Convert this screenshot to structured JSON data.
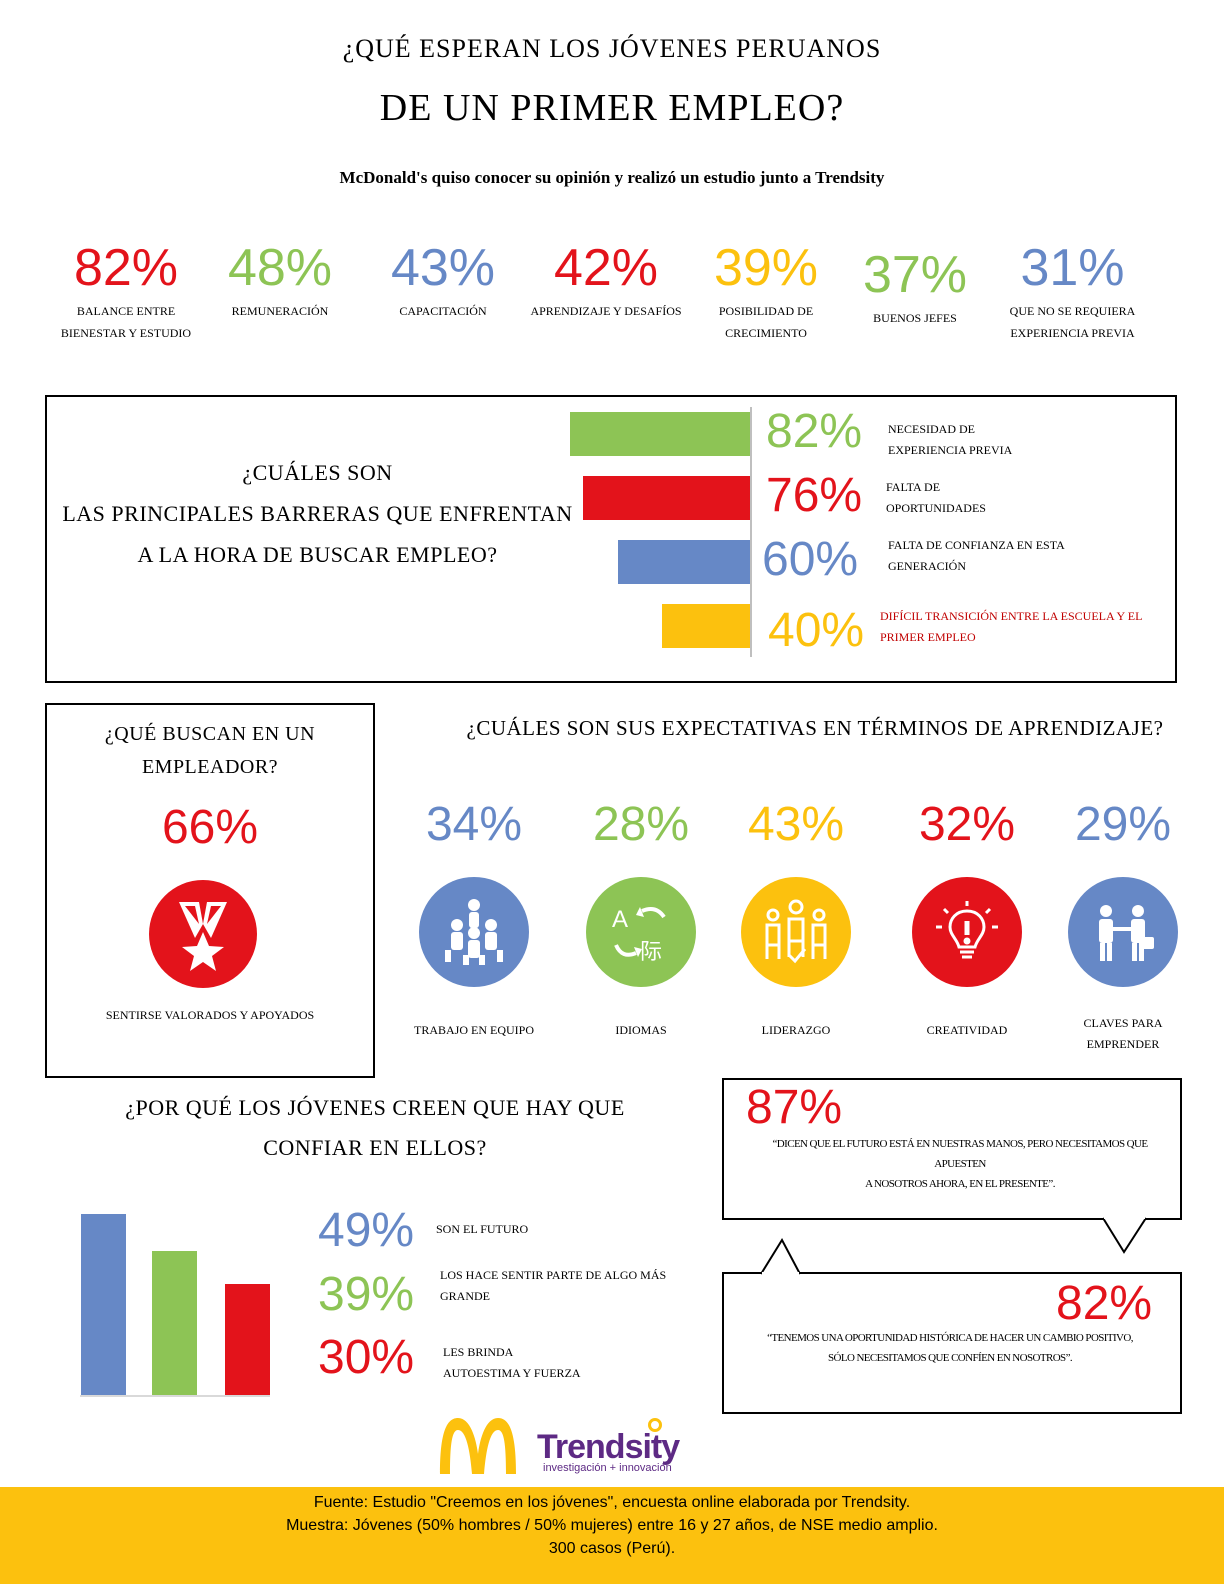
{
  "header": {
    "title_line1": "¿QUÉ ESPERAN LOS JÓVENES PERUANOS",
    "title_line2": "DE UN PRIMER EMPLEO?",
    "subtitle": "McDonald's quiso conocer su opinión y realizó un estudio junto a Trendsity"
  },
  "colors": {
    "red": "#e3131b",
    "green": "#8dc455",
    "blue": "#6688c6",
    "yellow": "#fcc10e",
    "dark_red": "#c00000"
  },
  "top_stats": [
    {
      "value": "82%",
      "label_l1": "balance entre",
      "label_l2": "bienestar y estudio",
      "color": "#e3131b"
    },
    {
      "value": "48%",
      "label_l1": "remuneración",
      "label_l2": "",
      "color": "#8dc455"
    },
    {
      "value": "43%",
      "label_l1": "capacitación",
      "label_l2": "",
      "color": "#6688c6"
    },
    {
      "value": "42%",
      "label_l1": "aprendizaje y desafíos",
      "label_l2": "",
      "color": "#e3131b"
    },
    {
      "value": "39%",
      "label_l1": "posibilidad de",
      "label_l2": "crecimiento",
      "color": "#fcc10e"
    },
    {
      "value": "37%",
      "label_l1": "buenos jefes",
      "label_l2": "",
      "color": "#8dc455"
    },
    {
      "value": "31%",
      "label_l1": "que no se requiera",
      "label_l2": "experiencia previa",
      "color": "#6688c6"
    }
  ],
  "barriers": {
    "question_l1": "¿CUÁLES SON",
    "question_l2": "LAS PRINCIPALES BARRERAS QUE ENFRENTAN",
    "question_l3": "A LA HORA DE BUSCAR EMPLEO?",
    "items": [
      {
        "value": "82%",
        "label_l1": "necesidad de",
        "label_l2": "experiencia previa",
        "color": "#8dc455",
        "fraction": 0.82
      },
      {
        "value": "76%",
        "label_l1": "falta de",
        "label_l2": "oportunidades",
        "color": "#e3131b",
        "fraction": 0.76
      },
      {
        "value": "60%",
        "label_l1": "falta de confianza en esta",
        "label_l2": "generación",
        "color": "#6688c6",
        "fraction": 0.6
      },
      {
        "value": "40%",
        "label_l1": "difícil transición entre la escuela y el",
        "label_l2": "primer empleo",
        "color": "#fcc10e",
        "fraction": 0.4
      }
    ]
  },
  "employer": {
    "question_l1": "¿QUÉ BUSCAN EN UN",
    "question_l2": "EMPLEADOR?",
    "value": "66%",
    "icon": "medal-star-icon",
    "label": "sentirse valorados y apoyados"
  },
  "learning": {
    "question": "¿CUÁLES SON SUS EXPECTATIVAS EN TÉRMINOS DE APRENDIZAJE?",
    "items": [
      {
        "value": "34%",
        "label_l1": "trabajo en equipo",
        "label_l2": "",
        "color": "#6688c6",
        "icon": "teamwork-icon"
      },
      {
        "value": "28%",
        "label_l1": "idiomas",
        "label_l2": "",
        "color": "#8dc455",
        "icon": "translate-icon"
      },
      {
        "value": "43%",
        "label_l1": "liderazgo",
        "label_l2": "",
        "color": "#fcc10e",
        "icon": "leadership-icon"
      },
      {
        "value": "32%",
        "label_l1": "creatividad",
        "label_l2": "",
        "color": "#e3131b",
        "icon": "lightbulb-icon"
      },
      {
        "value": "29%",
        "label_l1": "claves para",
        "label_l2": "emprender",
        "color": "#6688c6",
        "icon": "entrepreneur-icon"
      }
    ]
  },
  "trust": {
    "question_l1": "¿POR QUÉ LOS JÓVENES CREEN QUE HAY QUE",
    "question_l2": "CONFIAR EN ELLOS?",
    "items": [
      {
        "value": "49%",
        "label_l1": "son el futuro",
        "label_l2": "",
        "color": "#6688c6"
      },
      {
        "value": "39%",
        "label_l1": "los hace sentir parte de algo más",
        "label_l2": "grande",
        "color": "#8dc455"
      },
      {
        "value": "30%",
        "label_l1": "les brinda",
        "label_l2": "autoestima y fuerza",
        "color": "#e3131b"
      }
    ]
  },
  "chart_data": {
    "type": "bar",
    "categories": [
      "son el futuro",
      "los hace sentir parte de algo más grande",
      "les brinda autoestima y fuerza"
    ],
    "values": [
      49,
      39,
      30
    ],
    "colors": [
      "#6688c6",
      "#8dc455",
      "#e3131b"
    ]
  },
  "quotes": [
    {
      "value": "87%",
      "text_l1": "“dicen que el futuro está en nuestras manos, pero necesitamos que",
      "text_l2": "apuesten",
      "text_l3": "a nosotros ahora, en el presente”."
    },
    {
      "value": "82%",
      "text_l1": "“tenemos una oportunidad histórica de hacer un cambio positivo,",
      "text_l2": "sólo necesitamos que confíen en nosotros”."
    }
  ],
  "logos": {
    "mcdonalds": "M",
    "trendsity_name": "Trendsity",
    "trendsity_tagline": "investigación + innovación"
  },
  "footer": {
    "line1": "Fuente: Estudio \"Creemos en los jóvenes\", encuesta online elaborada por Trendsity.",
    "line2": "Muestra: Jóvenes (50% hombres / 50% mujeres) entre 16 y 27 años, de NSE medio amplio.",
    "line3": "300 casos (Perú)."
  }
}
